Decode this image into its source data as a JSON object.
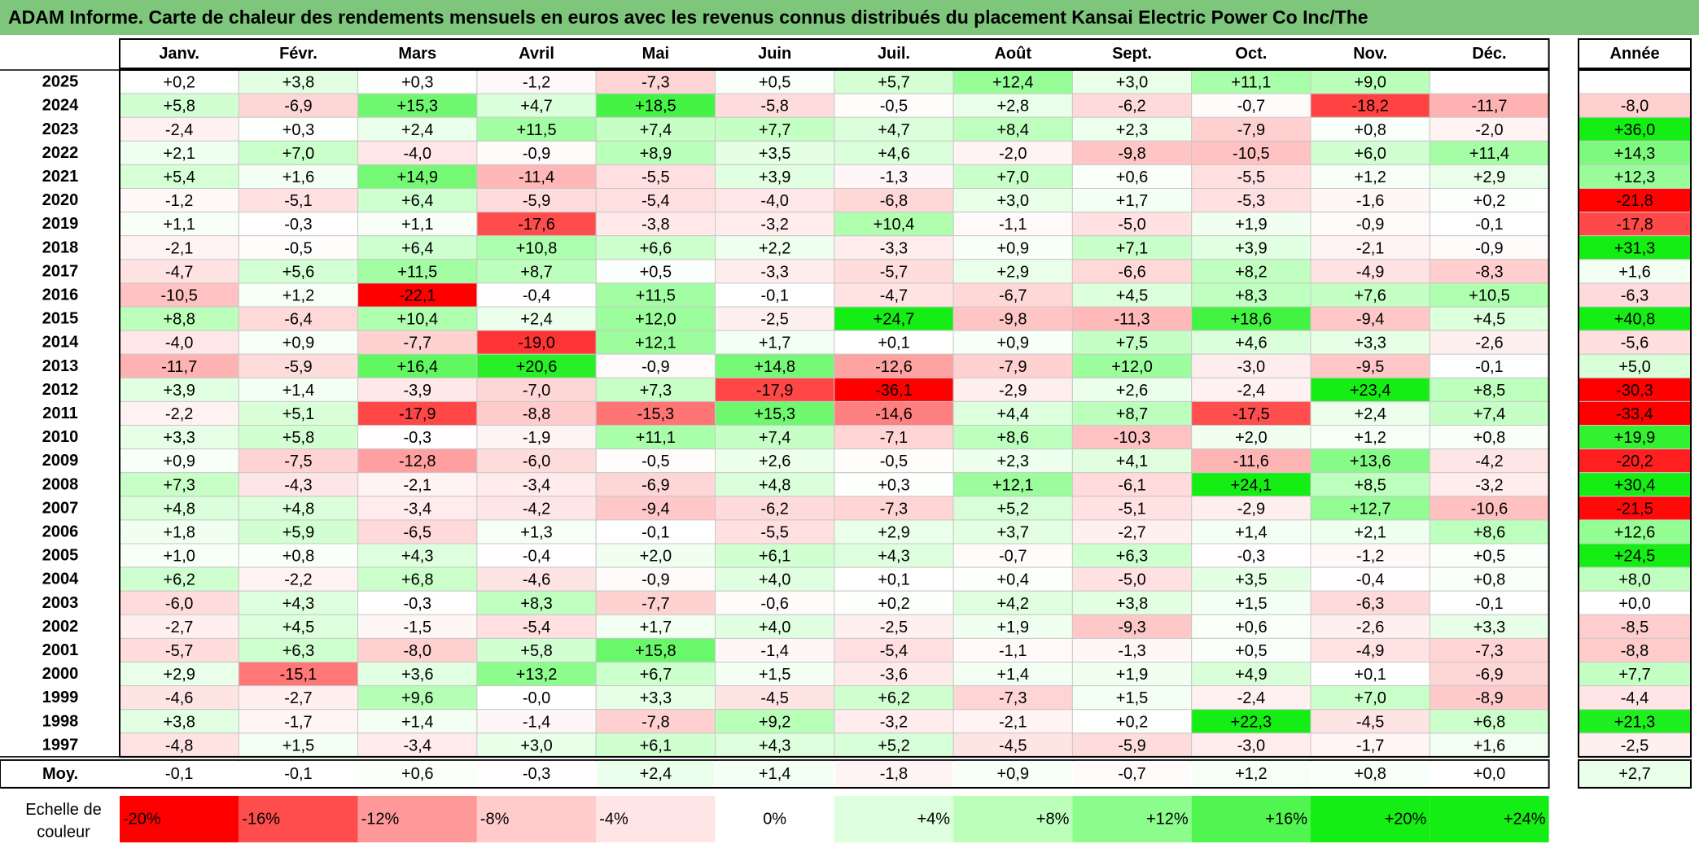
{
  "title": "ADAM Informe. Carte de chaleur des rendements mensuels en euros avec les revenus connus distribués du placement Kansai Electric Power Co Inc/The",
  "colors": {
    "title_bg": "#7dc67b",
    "neg_max": "#ff0000",
    "pos_max": "#00ee00",
    "neutral": "#ffffff"
  },
  "chart_data": {
    "type": "heatmap",
    "title": "ADAM Informe. Carte de chaleur des rendements mensuels en euros avec les revenus connus distribués du placement Kansai Electric Power Co Inc/The",
    "months": [
      "Janv.",
      "Févr.",
      "Mars",
      "Avril",
      "Mai",
      "Juin",
      "Juil.",
      "Août",
      "Sept.",
      "Oct.",
      "Nov.",
      "Déc."
    ],
    "year_header": "Année",
    "rows": [
      {
        "year": "2025",
        "values": [
          "+0,2",
          "+3,8",
          "+0,3",
          "-1,2",
          "-7,3",
          "+0,5",
          "+5,7",
          "+12,4",
          "+3,0",
          "+11,1",
          "+9,0",
          ""
        ],
        "annual": ""
      },
      {
        "year": "2024",
        "values": [
          "+5,8",
          "-6,9",
          "+15,3",
          "+4,7",
          "+18,5",
          "-5,8",
          "-0,5",
          "+2,8",
          "-6,2",
          "-0,7",
          "-18,2",
          "-11,7"
        ],
        "annual": "-8,0"
      },
      {
        "year": "2023",
        "values": [
          "-2,4",
          "+0,3",
          "+2,4",
          "+11,5",
          "+7,4",
          "+7,7",
          "+4,7",
          "+8,4",
          "+2,3",
          "-7,9",
          "+0,8",
          "-2,0"
        ],
        "annual": "+36,0"
      },
      {
        "year": "2022",
        "values": [
          "+2,1",
          "+7,0",
          "-4,0",
          "-0,9",
          "+8,9",
          "+3,5",
          "+4,6",
          "-2,0",
          "-9,8",
          "-10,5",
          "+6,0",
          "+11,4"
        ],
        "annual": "+14,3"
      },
      {
        "year": "2021",
        "values": [
          "+5,4",
          "+1,6",
          "+14,9",
          "-11,4",
          "-5,5",
          "+3,9",
          "-1,3",
          "+7,0",
          "+0,6",
          "-5,5",
          "+1,2",
          "+2,9"
        ],
        "annual": "+12,3"
      },
      {
        "year": "2020",
        "values": [
          "-1,2",
          "-5,1",
          "+6,4",
          "-5,9",
          "-5,4",
          "-4,0",
          "-6,8",
          "+3,0",
          "+1,7",
          "-5,3",
          "-1,6",
          "+0,2"
        ],
        "annual": "-21,8"
      },
      {
        "year": "2019",
        "values": [
          "+1,1",
          "-0,3",
          "+1,1",
          "-17,6",
          "-3,8",
          "-3,2",
          "+10,4",
          "-1,1",
          "-5,0",
          "+1,9",
          "-0,9",
          "-0,1"
        ],
        "annual": "-17,8"
      },
      {
        "year": "2018",
        "values": [
          "-2,1",
          "-0,5",
          "+6,4",
          "+10,8",
          "+6,6",
          "+2,2",
          "-3,3",
          "+0,9",
          "+7,1",
          "+3,9",
          "-2,1",
          "-0,9"
        ],
        "annual": "+31,3"
      },
      {
        "year": "2017",
        "values": [
          "-4,7",
          "+5,6",
          "+11,5",
          "+8,7",
          "+0,5",
          "-3,3",
          "-5,7",
          "+2,9",
          "-6,6",
          "+8,2",
          "-4,9",
          "-8,3"
        ],
        "annual": "+1,6"
      },
      {
        "year": "2016",
        "values": [
          "-10,5",
          "+1,2",
          "-22,1",
          "-0,4",
          "+11,5",
          "-0,1",
          "-4,7",
          "-6,7",
          "+4,5",
          "+8,3",
          "+7,6",
          "+10,5"
        ],
        "annual": "-6,3"
      },
      {
        "year": "2015",
        "values": [
          "+8,8",
          "-6,4",
          "+10,4",
          "+2,4",
          "+12,0",
          "-2,5",
          "+24,7",
          "-9,8",
          "-11,3",
          "+18,6",
          "-9,4",
          "+4,5"
        ],
        "annual": "+40,8"
      },
      {
        "year": "2014",
        "values": [
          "-4,0",
          "+0,9",
          "-7,7",
          "-19,0",
          "+12,1",
          "+1,7",
          "+0,1",
          "+0,9",
          "+7,5",
          "+4,6",
          "+3,3",
          "-2,6"
        ],
        "annual": "-5,6"
      },
      {
        "year": "2013",
        "values": [
          "-11,7",
          "-5,9",
          "+16,4",
          "+20,6",
          "-0,9",
          "+14,8",
          "-12,6",
          "-7,9",
          "+12,0",
          "-3,0",
          "-9,5",
          "-0,1"
        ],
        "annual": "+5,0"
      },
      {
        "year": "2012",
        "values": [
          "+3,9",
          "+1,4",
          "-3,9",
          "-7,0",
          "+7,3",
          "-17,9",
          "-36,1",
          "-2,9",
          "+2,6",
          "-2,4",
          "+23,4",
          "+8,5"
        ],
        "annual": "-30,3"
      },
      {
        "year": "2011",
        "values": [
          "-2,2",
          "+5,1",
          "-17,9",
          "-8,8",
          "-15,3",
          "+15,3",
          "-14,6",
          "+4,4",
          "+8,7",
          "-17,5",
          "+2,4",
          "+7,4"
        ],
        "annual": "-33,4"
      },
      {
        "year": "2010",
        "values": [
          "+3,3",
          "+5,8",
          "-0,3",
          "-1,9",
          "+11,1",
          "+7,4",
          "-7,1",
          "+8,6",
          "-10,3",
          "+2,0",
          "+1,2",
          "+0,8"
        ],
        "annual": "+19,9"
      },
      {
        "year": "2009",
        "values": [
          "+0,9",
          "-7,5",
          "-12,8",
          "-6,0",
          "-0,5",
          "+2,6",
          "-0,5",
          "+2,3",
          "+4,1",
          "-11,6",
          "+13,6",
          "-4,2"
        ],
        "annual": "-20,2"
      },
      {
        "year": "2008",
        "values": [
          "+7,3",
          "-4,3",
          "-2,1",
          "-3,4",
          "-6,9",
          "+4,8",
          "+0,3",
          "+12,1",
          "-6,1",
          "+24,1",
          "+8,5",
          "-3,2"
        ],
        "annual": "+30,4"
      },
      {
        "year": "2007",
        "values": [
          "+4,8",
          "+4,8",
          "-3,4",
          "-4,2",
          "-9,4",
          "-6,2",
          "-7,3",
          "+5,2",
          "-5,1",
          "-2,9",
          "+12,7",
          "-10,6"
        ],
        "annual": "-21,5"
      },
      {
        "year": "2006",
        "values": [
          "+1,8",
          "+5,9",
          "-6,5",
          "+1,3",
          "-0,1",
          "-5,5",
          "+2,9",
          "+3,7",
          "-2,7",
          "+1,4",
          "+2,1",
          "+8,6"
        ],
        "annual": "+12,6"
      },
      {
        "year": "2005",
        "values": [
          "+1,0",
          "+0,8",
          "+4,3",
          "-0,4",
          "+2,0",
          "+6,1",
          "+4,3",
          "-0,7",
          "+6,3",
          "-0,3",
          "-1,2",
          "+0,5"
        ],
        "annual": "+24,5"
      },
      {
        "year": "2004",
        "values": [
          "+6,2",
          "-2,2",
          "+6,8",
          "-4,6",
          "-0,9",
          "+4,0",
          "+0,1",
          "+0,4",
          "-5,0",
          "+3,5",
          "-0,4",
          "+0,8"
        ],
        "annual": "+8,0"
      },
      {
        "year": "2003",
        "values": [
          "-6,0",
          "+4,3",
          "-0,3",
          "+8,3",
          "-7,7",
          "-0,6",
          "+0,2",
          "+4,2",
          "+3,8",
          "+1,5",
          "-6,3",
          "-0,1"
        ],
        "annual": "+0,0"
      },
      {
        "year": "2002",
        "values": [
          "-2,7",
          "+4,5",
          "-1,5",
          "-5,4",
          "+1,7",
          "+4,0",
          "-2,5",
          "+1,9",
          "-9,3",
          "+0,6",
          "-2,6",
          "+3,3"
        ],
        "annual": "-8,5"
      },
      {
        "year": "2001",
        "values": [
          "-5,7",
          "+6,3",
          "-8,0",
          "+5,8",
          "+15,8",
          "-1,4",
          "-5,4",
          "-1,1",
          "-1,3",
          "+0,5",
          "-4,9",
          "-7,3"
        ],
        "annual": "-8,8"
      },
      {
        "year": "2000",
        "values": [
          "+2,9",
          "-15,1",
          "+3,6",
          "+13,2",
          "+6,7",
          "+1,5",
          "-3,6",
          "+1,4",
          "+1,9",
          "+4,9",
          "+0,1",
          "-6,9"
        ],
        "annual": "+7,7"
      },
      {
        "year": "1999",
        "values": [
          "-4,6",
          "-2,7",
          "+9,6",
          "-0,0",
          "+3,3",
          "-4,5",
          "+6,2",
          "-7,3",
          "+1,5",
          "-2,4",
          "+7,0",
          "-8,9"
        ],
        "annual": "-4,4"
      },
      {
        "year": "1998",
        "values": [
          "+3,8",
          "-1,7",
          "+1,4",
          "-1,4",
          "-7,8",
          "+9,2",
          "-3,2",
          "-2,1",
          "+0,2",
          "+22,3",
          "-4,5",
          "+6,8"
        ],
        "annual": "+21,3"
      },
      {
        "year": "1997",
        "values": [
          "-4,8",
          "+1,5",
          "-3,4",
          "+3,0",
          "+6,1",
          "+4,3",
          "+5,2",
          "-4,5",
          "-5,9",
          "-3,0",
          "-1,7",
          "+1,6"
        ],
        "annual": "-2,5"
      }
    ],
    "average": {
      "label": "Moy.",
      "values": [
        "-0,1",
        "-0,1",
        "+0,6",
        "-0,3",
        "+2,4",
        "+1,4",
        "-1,8",
        "+0,9",
        "-0,7",
        "+1,2",
        "+0,8",
        "+0,0"
      ],
      "annual": "+2,7"
    },
    "scale": {
      "label_line1": "Echelle de",
      "label_line2": "couleur",
      "steps": [
        "-20%",
        "-16%",
        "-12%",
        "-8%",
        "-4%",
        "0%",
        "+4%",
        "+8%",
        "+12%",
        "+16%",
        "+20%",
        "+24%"
      ]
    }
  }
}
